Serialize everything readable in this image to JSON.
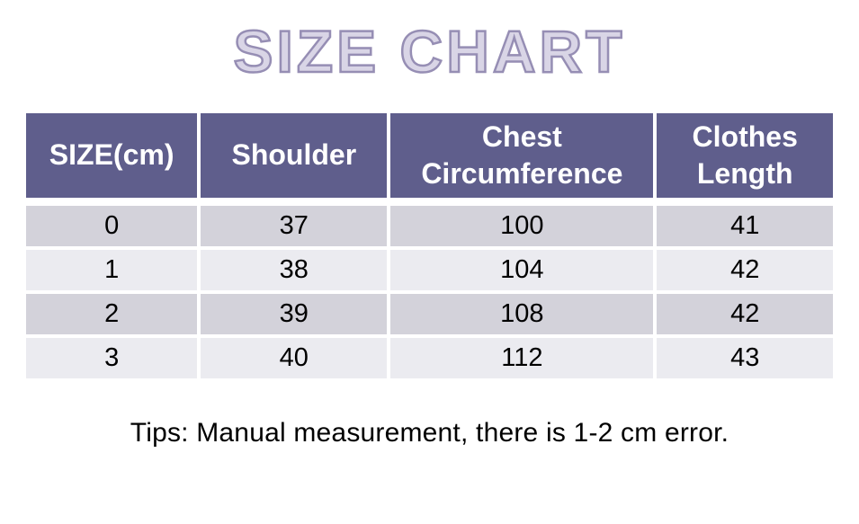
{
  "page": {
    "title_text": "SIZE CHART",
    "tips": "Tips: Manual measurement, there is 1-2 cm error."
  },
  "table": {
    "columns": [
      {
        "label": "SIZE(cm)"
      },
      {
        "label": "Shoulder"
      },
      {
        "label": "Chest Circumference"
      },
      {
        "label": "Clothes Length"
      }
    ],
    "rows": [
      {
        "cells": [
          "0",
          "37",
          "100",
          "41"
        ]
      },
      {
        "cells": [
          "1",
          "38",
          "104",
          "42"
        ]
      },
      {
        "cells": [
          "2",
          "39",
          "108",
          "42"
        ]
      },
      {
        "cells": [
          "3",
          "40",
          "112",
          "43"
        ]
      }
    ]
  },
  "chart_data": {
    "type": "table",
    "title": "SIZE CHART",
    "columns": [
      "SIZE(cm)",
      "Shoulder",
      "Chest Circumference",
      "Clothes Length"
    ],
    "rows": [
      [
        "0",
        37,
        100,
        41
      ],
      [
        "1",
        38,
        104,
        42
      ],
      [
        "2",
        39,
        108,
        42
      ],
      [
        "3",
        40,
        112,
        43
      ]
    ],
    "footnote": "Tips: Manual measurement, there is 1-2 cm error."
  },
  "colors": {
    "page_bg": "#ffffff",
    "header_bg": "#5f5e8c",
    "header_text": "#ffffff",
    "row_dark": "#d3d2da",
    "row_light": "#ebebf0",
    "title_fill": "#d9d5e6",
    "title_stroke": "#968eb4",
    "body_text": "#000000"
  }
}
